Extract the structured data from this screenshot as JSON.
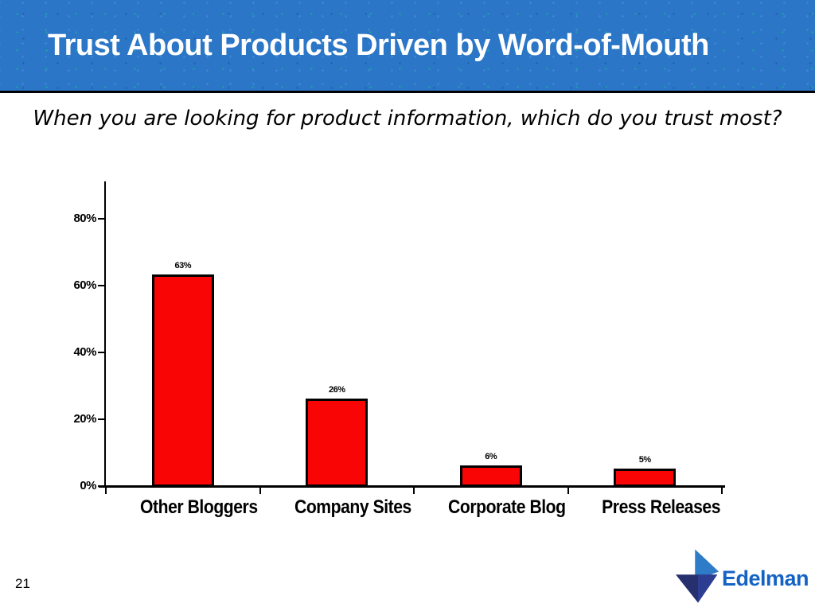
{
  "banner": {
    "title": "Trust About Products Driven by Word-of-Mouth",
    "background_color": "#2B76C6",
    "text_color": "#FFFFFF"
  },
  "subtitle": {
    "text": "When you are looking for product information, which do you trust most?"
  },
  "chart_data": {
    "type": "bar",
    "title": "",
    "categories": [
      "Other Bloggers",
      "Company Sites",
      "Corporate Blog",
      "Press Releases"
    ],
    "values": [
      63,
      26,
      6,
      5
    ],
    "value_labels": [
      "63%",
      "26%",
      "6%",
      "5%"
    ],
    "y_ticks": [
      "0%",
      "20%",
      "40%",
      "60%",
      "80%"
    ],
    "y_tick_values": [
      0,
      20,
      40,
      60,
      80
    ],
    "ylim": [
      0,
      91
    ],
    "xlabel": "",
    "ylabel": "",
    "grid": false,
    "legend": "none",
    "bar_color": "#FA0505",
    "bar_border_color": "#000000"
  },
  "footer": {
    "page_number": "21",
    "logo_text": "Edelman",
    "logo_text_color": "#1463C4",
    "logo_mark_colors": [
      "#2E7CC8",
      "#27306F",
      "#2C3E92"
    ]
  }
}
